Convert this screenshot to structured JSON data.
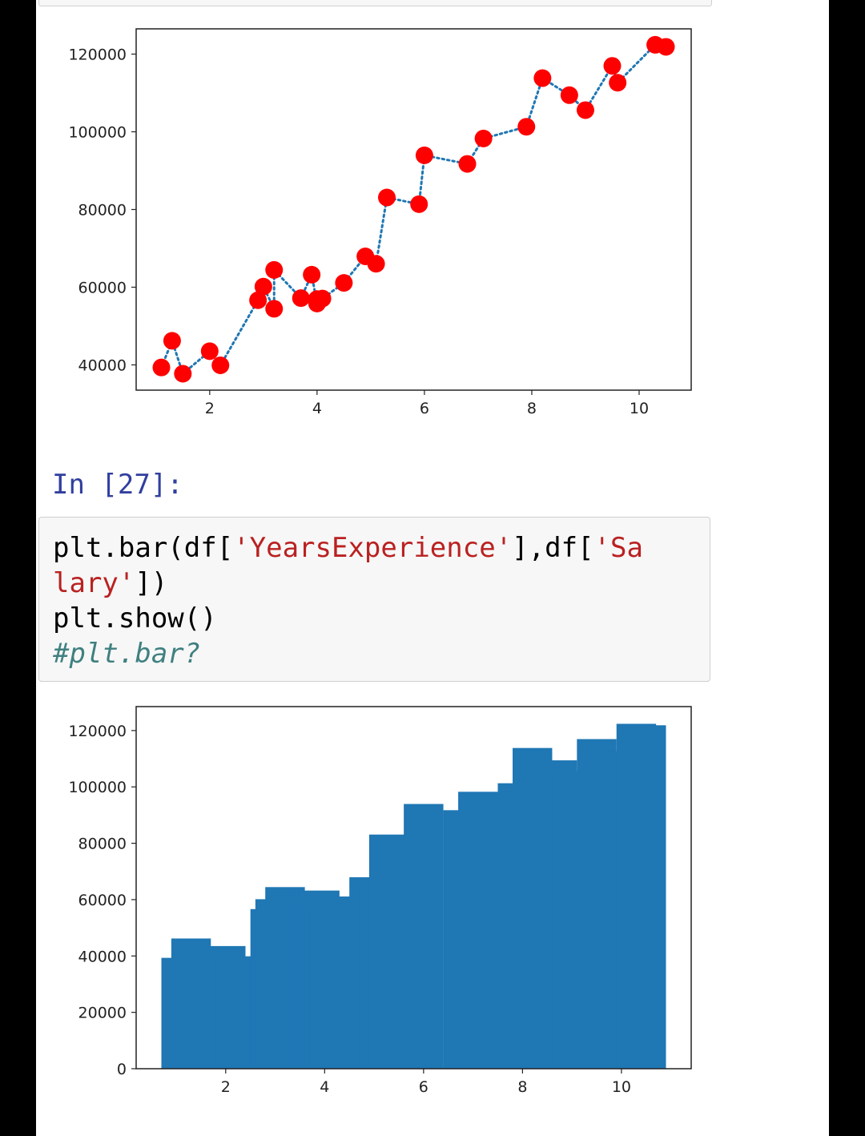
{
  "cells": {
    "prompt_label": "In [27]:",
    "code_lines": [
      {
        "parts": [
          {
            "t": "plt.bar(df[",
            "c": ""
          },
          {
            "t": "'YearsExperience'",
            "c": "str"
          },
          {
            "t": "],df[",
            "c": ""
          },
          {
            "t": "'Sa",
            "c": "str"
          }
        ]
      },
      {
        "parts": [
          {
            "t": "lary'",
            "c": "str"
          },
          {
            "t": "])",
            "c": ""
          }
        ]
      },
      {
        "parts": [
          {
            "t": "plt.show()",
            "c": ""
          }
        ]
      },
      {
        "parts": [
          {
            "t": "#plt.bar?",
            "c": "com"
          }
        ]
      }
    ]
  },
  "colors": {
    "marker": "#ff0000",
    "dotted_line": "#1f77b4",
    "bar": "#1f77b4",
    "prompt": "#303f9f",
    "string": "#ba2121",
    "comment": "#408080"
  },
  "chart_data": [
    {
      "type": "scatter",
      "title": "",
      "xlabel": "",
      "ylabel": "",
      "line_style": "dotted",
      "x": [
        1.1,
        1.3,
        1.5,
        2.0,
        2.2,
        2.9,
        3.0,
        3.2,
        3.2,
        3.7,
        3.9,
        4.0,
        4.0,
        4.1,
        4.5,
        4.9,
        5.1,
        5.3,
        5.9,
        6.0,
        6.8,
        7.1,
        7.9,
        8.2,
        8.7,
        9.0,
        9.5,
        9.6,
        10.3,
        10.5
      ],
      "y": [
        39343,
        46205,
        37731,
        43525,
        39891,
        56642,
        60150,
        54445,
        64445,
        57189,
        63218,
        55794,
        56957,
        57081,
        61111,
        67938,
        66029,
        83088,
        81363,
        93940,
        91738,
        98273,
        101302,
        113812,
        109431,
        105582,
        116969,
        112635,
        122391,
        121872
      ],
      "xlim": [
        0.63,
        10.97
      ],
      "ylim": [
        33500,
        126500
      ],
      "xticks": [
        2,
        4,
        6,
        8,
        10
      ],
      "yticks": [
        40000,
        60000,
        80000,
        100000,
        120000
      ],
      "tick_labels_x": [
        "2",
        "4",
        "6",
        "8",
        "10"
      ],
      "tick_labels_y": [
        "40000",
        "60000",
        "80000",
        "100000",
        "120000"
      ]
    },
    {
      "type": "bar",
      "title": "",
      "xlabel": "",
      "ylabel": "",
      "bar_width": 0.8,
      "x": [
        1.1,
        1.3,
        1.5,
        2.0,
        2.2,
        2.9,
        3.0,
        3.2,
        3.2,
        3.7,
        3.9,
        4.0,
        4.0,
        4.1,
        4.5,
        4.9,
        5.1,
        5.3,
        5.9,
        6.0,
        6.8,
        7.1,
        7.9,
        8.2,
        8.7,
        9.0,
        9.5,
        9.6,
        10.3,
        10.5
      ],
      "values": [
        39343,
        46205,
        37731,
        43525,
        39891,
        56642,
        60150,
        54445,
        64445,
        57189,
        63218,
        55794,
        56957,
        57081,
        61111,
        67938,
        66029,
        83088,
        81363,
        93940,
        91738,
        98273,
        101302,
        113812,
        109431,
        105582,
        116969,
        112635,
        122391,
        121872
      ],
      "xlim": [
        0.19,
        11.41
      ],
      "ylim": [
        0,
        128500
      ],
      "xticks": [
        2,
        4,
        6,
        8,
        10
      ],
      "yticks": [
        0,
        20000,
        40000,
        60000,
        80000,
        100000,
        120000
      ],
      "tick_labels_x": [
        "2",
        "4",
        "6",
        "8",
        "10"
      ],
      "tick_labels_y": [
        "0",
        "20000",
        "40000",
        "60000",
        "80000",
        "100000",
        "120000"
      ]
    }
  ]
}
